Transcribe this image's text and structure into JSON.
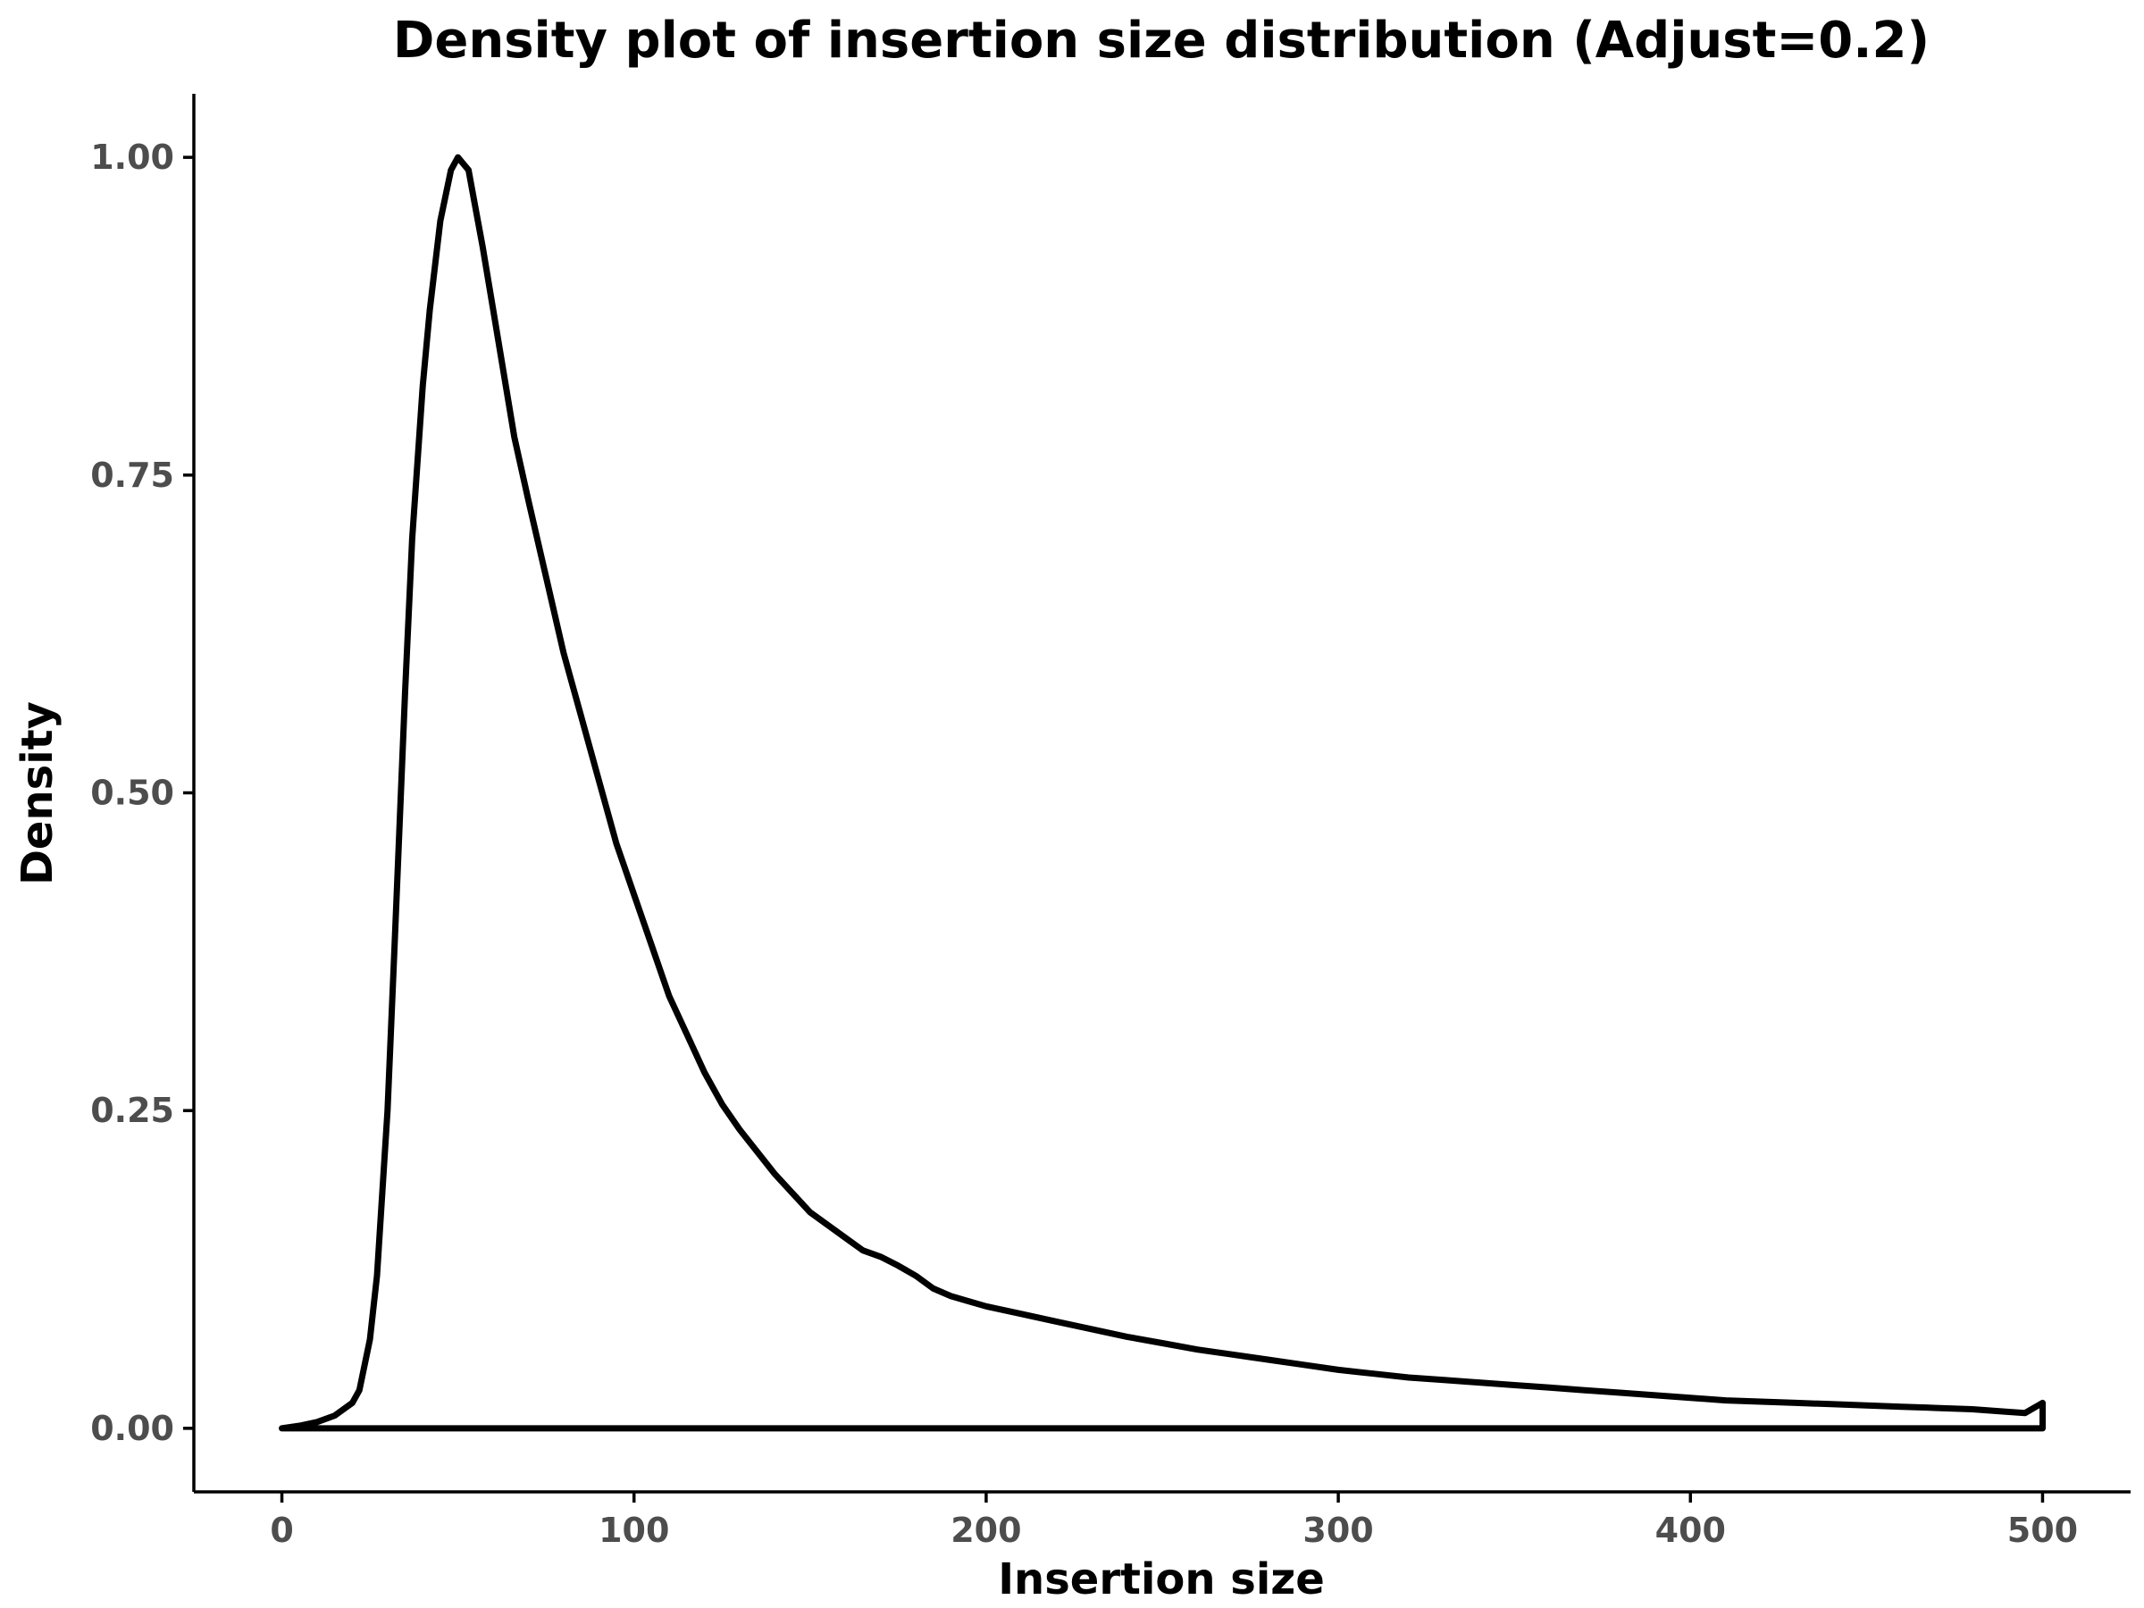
{
  "chart_data": {
    "type": "area",
    "title": "Density plot of insertion size distribution (Adjust=0.2)",
    "xlabel": "Insertion size",
    "ylabel": "Density",
    "xlim": [
      -25,
      525
    ],
    "ylim": [
      -0.05,
      1.05
    ],
    "x_ticks": [
      0,
      100,
      200,
      300,
      400,
      500
    ],
    "x_tick_labels": [
      "0",
      "100",
      "200",
      "300",
      "400",
      "500"
    ],
    "y_ticks": [
      0,
      0.25,
      0.5,
      0.75,
      1.0
    ],
    "y_tick_labels": [
      "0.00",
      "0.25",
      "0.50",
      "0.75",
      "1.00"
    ],
    "grid": false,
    "legend": "none",
    "line_color": "#000000",
    "fill": "none",
    "series": [
      {
        "x": [
          0,
          5,
          10,
          15,
          20,
          22,
          25,
          27,
          30,
          32,
          35,
          37,
          40,
          42,
          45,
          48,
          50,
          53,
          55,
          57,
          60,
          63,
          66,
          70,
          75,
          80,
          85,
          90,
          95,
          100,
          105,
          110,
          115,
          120,
          125,
          130,
          140,
          150,
          160,
          165,
          170,
          175,
          180,
          185,
          190,
          195,
          200,
          210,
          220,
          230,
          240,
          250,
          260,
          270,
          280,
          290,
          300,
          310,
          320,
          330,
          340,
          350,
          360,
          370,
          380,
          390,
          400,
          410,
          420,
          430,
          440,
          450,
          460,
          470,
          480,
          490,
          495,
          500
        ],
        "y": [
          0.0,
          0.002,
          0.005,
          0.01,
          0.02,
          0.03,
          0.07,
          0.12,
          0.25,
          0.38,
          0.58,
          0.7,
          0.82,
          0.88,
          0.95,
          0.99,
          1.0,
          0.99,
          0.96,
          0.93,
          0.88,
          0.83,
          0.78,
          0.73,
          0.67,
          0.61,
          0.56,
          0.51,
          0.46,
          0.42,
          0.38,
          0.34,
          0.31,
          0.28,
          0.255,
          0.235,
          0.2,
          0.17,
          0.15,
          0.14,
          0.135,
          0.128,
          0.12,
          0.11,
          0.104,
          0.1,
          0.096,
          0.09,
          0.084,
          0.078,
          0.072,
          0.067,
          0.062,
          0.058,
          0.054,
          0.05,
          0.046,
          0.043,
          0.04,
          0.038,
          0.036,
          0.034,
          0.032,
          0.03,
          0.028,
          0.026,
          0.024,
          0.022,
          0.021,
          0.02,
          0.019,
          0.018,
          0.017,
          0.016,
          0.015,
          0.013,
          0.012,
          0.02
        ]
      }
    ]
  }
}
